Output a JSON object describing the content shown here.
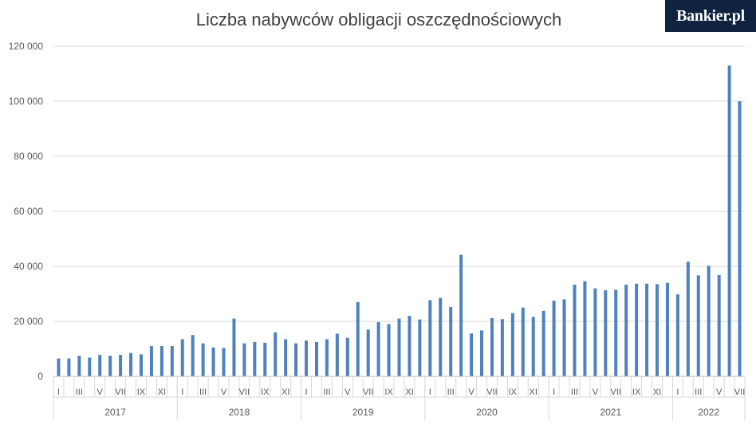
{
  "brand": {
    "logo_text": "Bankier.pl",
    "bg_color": "#0f2340"
  },
  "chart_data": {
    "type": "bar",
    "title": "Liczba nabywców obligacji oszczędnościowych",
    "xlabel": "",
    "ylabel": "",
    "ylim": [
      0,
      120000
    ],
    "yticks": [
      0,
      20000,
      40000,
      60000,
      80000,
      100000,
      120000
    ],
    "ytick_labels": [
      "0",
      "20 000",
      "40 000",
      "60 000",
      "80 000",
      "100 000",
      "120 000"
    ],
    "grid": true,
    "legend": "none",
    "bar_color": "#4f81bd",
    "years": [
      {
        "label": "2017",
        "months": 12
      },
      {
        "label": "2018",
        "months": 12
      },
      {
        "label": "2019",
        "months": 12
      },
      {
        "label": "2020",
        "months": 12
      },
      {
        "label": "2021",
        "months": 12
      },
      {
        "label": "2022",
        "months": 7
      }
    ],
    "month_labels": [
      "I",
      "",
      "III",
      "",
      "V",
      "",
      "VII",
      "",
      "IX",
      "",
      "XI",
      ""
    ],
    "values": [
      6500,
      6500,
      7500,
      6800,
      7800,
      7500,
      7800,
      8500,
      8000,
      11000,
      11000,
      11000,
      13500,
      15000,
      12000,
      10500,
      10300,
      21000,
      12000,
      12500,
      12200,
      16000,
      13500,
      12000,
      13000,
      12500,
      13500,
      15500,
      14000,
      27000,
      17000,
      19700,
      19000,
      21000,
      22000,
      20700,
      27700,
      28500,
      25200,
      44200,
      15600,
      16700,
      21200,
      20800,
      23000,
      25000,
      21600,
      23800,
      27500,
      28000,
      33300,
      34600,
      32000,
      31300,
      31500,
      33300,
      33700,
      33700,
      33500,
      34000,
      29800,
      41700,
      36700,
      40200,
      36800,
      113000,
      100000
    ]
  }
}
